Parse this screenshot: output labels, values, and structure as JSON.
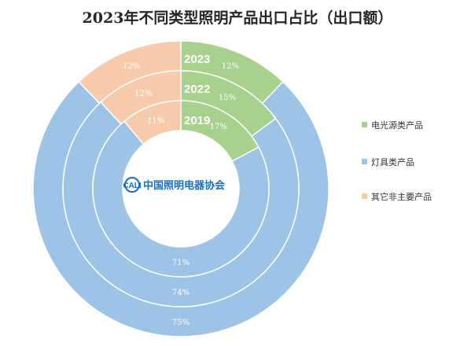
{
  "chart_data": {
    "type": "pie",
    "subtype": "nested-donut",
    "title": "2023年不同类型照明产品出口占比（出口额）",
    "categories": [
      "电光源类产品",
      "灯具类产品",
      "其它非主要产品"
    ],
    "series": [
      {
        "name": "2023",
        "values": [
          12,
          75,
          12
        ],
        "labels": [
          "12%",
          "75%",
          "12%"
        ]
      },
      {
        "name": "2022",
        "values": [
          15,
          74,
          12
        ],
        "labels": [
          "15%",
          "74%",
          "12%"
        ]
      },
      {
        "name": "2019",
        "values": [
          17,
          71,
          11
        ],
        "labels": [
          "17%",
          "71%",
          "11%"
        ]
      }
    ],
    "colors": [
      "#a9d18e",
      "#9dc3e6",
      "#f8cbad"
    ],
    "legend_position": "right",
    "legend": [
      "电光源类产品",
      "灯具类产品",
      "其它非主要产品"
    ]
  },
  "watermark": {
    "abbr": "CALI",
    "text": "中国照明电器协会"
  }
}
